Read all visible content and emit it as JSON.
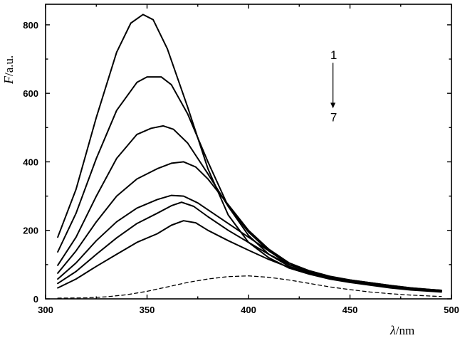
{
  "chart_data": {
    "type": "line",
    "title": "",
    "xlabel_symbol": "λ",
    "xlabel_unit": "/nm",
    "ylabel_symbol": "F",
    "ylabel_unit": "/a.u.",
    "xlim": [
      300,
      500
    ],
    "ylim": [
      0,
      860
    ],
    "x_ticks": [
      300,
      350,
      400,
      450,
      500
    ],
    "y_ticks": [
      0,
      200,
      400,
      600,
      800
    ],
    "grid": false,
    "annotation": {
      "top": "1",
      "bottom": "7",
      "arrow": "down",
      "x": 436,
      "y_top": 712,
      "y_bottom": 560
    },
    "series": [
      {
        "style": "solid",
        "points": [
          [
            306,
            180
          ],
          [
            315,
            320
          ],
          [
            325,
            530
          ],
          [
            335,
            720
          ],
          [
            342,
            805
          ],
          [
            348,
            830
          ],
          [
            353,
            815
          ],
          [
            360,
            730
          ],
          [
            370,
            560
          ],
          [
            380,
            380
          ],
          [
            390,
            245
          ],
          [
            400,
            165
          ],
          [
            410,
            120
          ],
          [
            420,
            90
          ],
          [
            430,
            72
          ],
          [
            440,
            58
          ],
          [
            450,
            48
          ],
          [
            460,
            40
          ],
          [
            470,
            32
          ],
          [
            480,
            26
          ],
          [
            490,
            22
          ],
          [
            495,
            20
          ]
        ]
      },
      {
        "style": "solid",
        "points": [
          [
            306,
            137
          ],
          [
            315,
            250
          ],
          [
            325,
            410
          ],
          [
            335,
            550
          ],
          [
            345,
            632
          ],
          [
            350,
            648
          ],
          [
            357,
            648
          ],
          [
            362,
            625
          ],
          [
            370,
            540
          ],
          [
            380,
            400
          ],
          [
            390,
            270
          ],
          [
            400,
            185
          ],
          [
            410,
            130
          ],
          [
            420,
            95
          ],
          [
            430,
            75
          ],
          [
            440,
            60
          ],
          [
            450,
            50
          ],
          [
            460,
            42
          ],
          [
            470,
            34
          ],
          [
            480,
            28
          ],
          [
            490,
            24
          ],
          [
            495,
            22
          ]
        ]
      },
      {
        "style": "solid",
        "points": [
          [
            306,
            98
          ],
          [
            315,
            180
          ],
          [
            325,
            300
          ],
          [
            335,
            410
          ],
          [
            345,
            480
          ],
          [
            352,
            498
          ],
          [
            358,
            505
          ],
          [
            363,
            495
          ],
          [
            370,
            455
          ],
          [
            380,
            365
          ],
          [
            390,
            270
          ],
          [
            400,
            195
          ],
          [
            410,
            140
          ],
          [
            420,
            100
          ],
          [
            430,
            78
          ],
          [
            440,
            62
          ],
          [
            450,
            52
          ],
          [
            460,
            44
          ],
          [
            470,
            36
          ],
          [
            480,
            30
          ],
          [
            490,
            25
          ],
          [
            495,
            23
          ]
        ]
      },
      {
        "style": "solid",
        "points": [
          [
            306,
            75
          ],
          [
            315,
            140
          ],
          [
            325,
            225
          ],
          [
            335,
            300
          ],
          [
            345,
            350
          ],
          [
            355,
            380
          ],
          [
            362,
            396
          ],
          [
            368,
            400
          ],
          [
            374,
            385
          ],
          [
            380,
            350
          ],
          [
            390,
            275
          ],
          [
            400,
            200
          ],
          [
            410,
            145
          ],
          [
            420,
            105
          ],
          [
            430,
            80
          ],
          [
            440,
            64
          ],
          [
            450,
            54
          ],
          [
            460,
            46
          ],
          [
            470,
            38
          ],
          [
            480,
            31
          ],
          [
            490,
            26
          ],
          [
            495,
            24
          ]
        ]
      },
      {
        "style": "solid",
        "points": [
          [
            306,
            58
          ],
          [
            315,
            105
          ],
          [
            325,
            170
          ],
          [
            335,
            225
          ],
          [
            345,
            265
          ],
          [
            355,
            290
          ],
          [
            362,
            302
          ],
          [
            368,
            300
          ],
          [
            375,
            280
          ],
          [
            380,
            260
          ],
          [
            390,
            220
          ],
          [
            400,
            180
          ],
          [
            410,
            140
          ],
          [
            420,
            105
          ],
          [
            430,
            82
          ],
          [
            440,
            66
          ],
          [
            450,
            55
          ],
          [
            460,
            47
          ],
          [
            470,
            39
          ],
          [
            480,
            32
          ],
          [
            490,
            27
          ],
          [
            495,
            25
          ]
        ]
      },
      {
        "style": "solid",
        "points": [
          [
            306,
            45
          ],
          [
            315,
            80
          ],
          [
            325,
            130
          ],
          [
            335,
            178
          ],
          [
            345,
            220
          ],
          [
            355,
            250
          ],
          [
            362,
            272
          ],
          [
            367,
            282
          ],
          [
            373,
            270
          ],
          [
            380,
            240
          ],
          [
            390,
            200
          ],
          [
            400,
            165
          ],
          [
            410,
            130
          ],
          [
            420,
            100
          ],
          [
            430,
            80
          ],
          [
            440,
            65
          ],
          [
            450,
            55
          ],
          [
            460,
            47
          ],
          [
            470,
            39
          ],
          [
            480,
            32
          ],
          [
            490,
            27
          ],
          [
            495,
            25
          ]
        ]
      },
      {
        "style": "solid",
        "points": [
          [
            306,
            32
          ],
          [
            315,
            58
          ],
          [
            325,
            95
          ],
          [
            335,
            130
          ],
          [
            345,
            165
          ],
          [
            355,
            190
          ],
          [
            362,
            215
          ],
          [
            368,
            228
          ],
          [
            374,
            222
          ],
          [
            380,
            200
          ],
          [
            390,
            170
          ],
          [
            400,
            142
          ],
          [
            410,
            115
          ],
          [
            420,
            92
          ],
          [
            430,
            75
          ],
          [
            440,
            62
          ],
          [
            450,
            52
          ],
          [
            460,
            45
          ],
          [
            470,
            37
          ],
          [
            480,
            30
          ],
          [
            490,
            25
          ],
          [
            495,
            23
          ]
        ]
      },
      {
        "style": "dashed",
        "points": [
          [
            306,
            2
          ],
          [
            320,
            3
          ],
          [
            330,
            6
          ],
          [
            340,
            12
          ],
          [
            350,
            22
          ],
          [
            360,
            35
          ],
          [
            370,
            48
          ],
          [
            380,
            58
          ],
          [
            390,
            65
          ],
          [
            400,
            67
          ],
          [
            410,
            63
          ],
          [
            420,
            55
          ],
          [
            430,
            45
          ],
          [
            440,
            35
          ],
          [
            450,
            27
          ],
          [
            460,
            20
          ],
          [
            470,
            15
          ],
          [
            480,
            11
          ],
          [
            490,
            8
          ],
          [
            495,
            7
          ]
        ]
      }
    ]
  }
}
